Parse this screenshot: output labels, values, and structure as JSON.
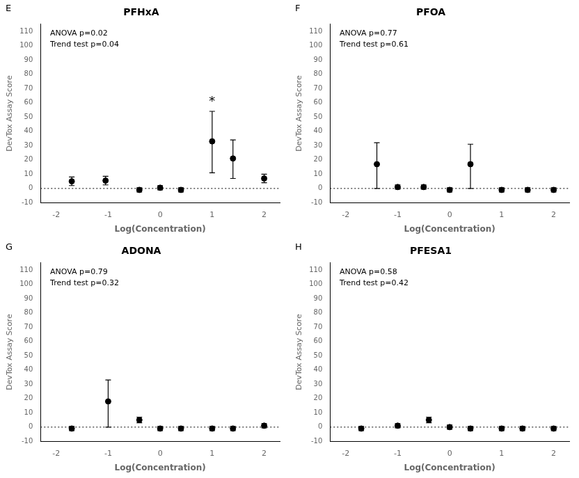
{
  "chart_data": [
    {
      "type": "scatter",
      "panel_label": "E",
      "title": "PFHxA",
      "x_label": "Log(Concentration)",
      "y_label": "DevTox Assay Score",
      "x": [
        -1.7,
        -1.05,
        -0.4,
        0.0,
        0.4,
        1.0,
        1.4,
        2.0
      ],
      "series": [
        {
          "color": "#000000",
          "marker": "circle",
          "values": [
            5.0,
            5.5,
            -1.0,
            0.5,
            -1.0,
            33.0,
            21.0,
            7.0
          ],
          "yerr_low": [
            3.0,
            3.0,
            1.5,
            1.5,
            1.5,
            22.0,
            14.0,
            3.0
          ],
          "yerr_high": [
            3.0,
            3.0,
            1.5,
            1.5,
            1.5,
            21.0,
            13.0,
            3.0
          ]
        }
      ],
      "annotations": [
        {
          "text": "ANOVA p=0.02\nTrend test p=0.04"
        },
        {
          "text": "*",
          "x": 1.0,
          "y": 62.0
        }
      ],
      "reference_line_y": 0,
      "xlim": [
        -2.3,
        2.3
      ],
      "xticks": [
        -2,
        -1,
        0,
        1,
        2
      ],
      "ylim": [
        -10,
        115
      ],
      "yticks": [
        -10,
        0,
        10,
        20,
        30,
        40,
        50,
        60,
        70,
        80,
        90,
        100,
        110
      ],
      "grid": false
    },
    {
      "type": "scatter",
      "panel_label": "F",
      "title": "PFOA",
      "x_label": "Log(Concentration)",
      "y_label": "DevTox Assay Score",
      "x": [
        -1.4,
        -1.0,
        -0.5,
        0.0,
        0.4,
        1.0,
        1.5,
        2.0
      ],
      "series": [
        {
          "color": "#000000",
          "marker": "circle",
          "values": [
            17.0,
            1.0,
            1.0,
            -1.0,
            17.0,
            -1.0,
            -1.0,
            -1.0
          ],
          "yerr_low": [
            17.0,
            1.5,
            1.5,
            1.5,
            17.0,
            1.5,
            1.5,
            1.5
          ],
          "yerr_high": [
            15.0,
            1.5,
            1.5,
            1.5,
            14.0,
            1.5,
            1.5,
            1.5
          ]
        }
      ],
      "annotations": [
        {
          "text": "ANOVA p=0.77\nTrend test p=0.61"
        }
      ],
      "reference_line_y": 0,
      "xlim": [
        -2.3,
        2.3
      ],
      "xticks": [
        -2,
        -1,
        0,
        1,
        2
      ],
      "ylim": [
        -10,
        115
      ],
      "yticks": [
        -10,
        0,
        10,
        20,
        30,
        40,
        50,
        60,
        70,
        80,
        90,
        100,
        110
      ],
      "grid": false
    },
    {
      "type": "scatter",
      "panel_label": "G",
      "title": "ADONA",
      "x_label": "Log(Concentration)",
      "y_label": "DevTox Assay Score",
      "x": [
        -1.7,
        -1.0,
        -0.4,
        0.0,
        0.4,
        1.0,
        1.4,
        2.0
      ],
      "series": [
        {
          "color": "#000000",
          "marker": "circle",
          "values": [
            -1.0,
            18.0,
            5.0,
            -1.0,
            -1.0,
            -1.0,
            -1.0,
            1.0
          ],
          "yerr_low": [
            1.5,
            18.0,
            2.0,
            1.5,
            1.5,
            1.5,
            1.5,
            1.5
          ],
          "yerr_high": [
            1.5,
            15.0,
            2.0,
            1.5,
            1.5,
            1.5,
            1.5,
            1.5
          ]
        }
      ],
      "annotations": [
        {
          "text": "ANOVA p=0.79\nTrend test p=0.32"
        }
      ],
      "reference_line_y": 0,
      "xlim": [
        -2.3,
        2.3
      ],
      "xticks": [
        -2,
        -1,
        0,
        1,
        2
      ],
      "ylim": [
        -10,
        115
      ],
      "yticks": [
        -10,
        0,
        10,
        20,
        30,
        40,
        50,
        60,
        70,
        80,
        90,
        100,
        110
      ],
      "grid": false
    },
    {
      "type": "scatter",
      "panel_label": "H",
      "title": "PFESA1",
      "x_label": "Log(Concentration)",
      "y_label": "DevTox Assay Score",
      "x": [
        -1.7,
        -1.0,
        -0.4,
        0.0,
        0.4,
        1.0,
        1.4,
        2.0
      ],
      "series": [
        {
          "color": "#000000",
          "marker": "circle",
          "values": [
            -1.0,
            1.0,
            5.0,
            0.0,
            -1.0,
            -1.0,
            -1.0,
            -1.0
          ],
          "yerr_low": [
            1.5,
            1.5,
            2.0,
            1.5,
            1.5,
            1.5,
            1.5,
            1.5
          ],
          "yerr_high": [
            1.5,
            1.5,
            2.0,
            1.5,
            1.5,
            1.5,
            1.5,
            1.5
          ]
        }
      ],
      "annotations": [
        {
          "text": "ANOVA p=0.58\nTrend test p=0.42"
        }
      ],
      "reference_line_y": 0,
      "xlim": [
        -2.3,
        2.3
      ],
      "xticks": [
        -2,
        -1,
        0,
        1,
        2
      ],
      "ylim": [
        -10,
        115
      ],
      "yticks": [
        -10,
        0,
        10,
        20,
        30,
        40,
        50,
        60,
        70,
        80,
        90,
        100,
        110
      ],
      "grid": false
    }
  ]
}
